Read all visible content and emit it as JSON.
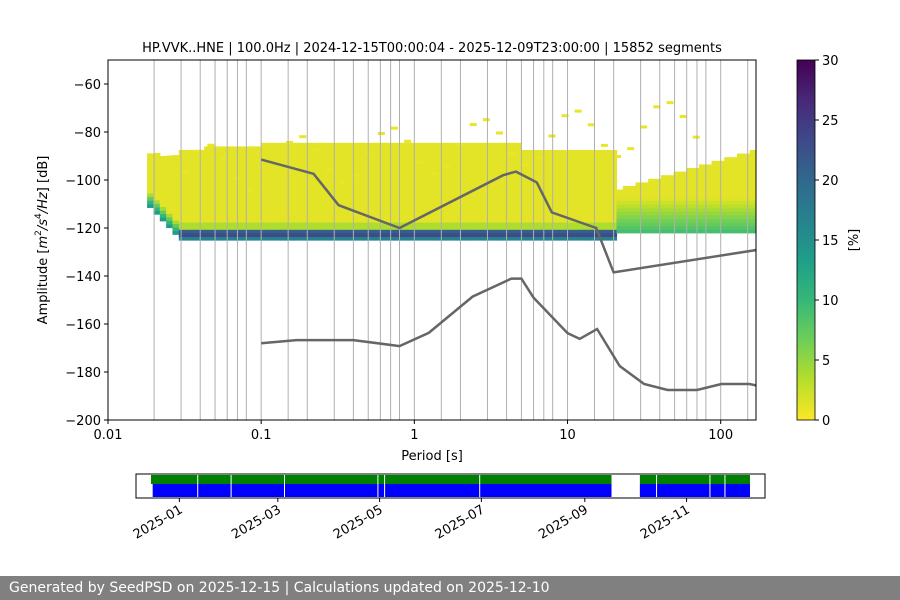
{
  "footer": "Generated by SeedPSD on 2025-12-15 | Calculations updated on 2025-12-10",
  "chart_data": [
    {
      "type": "heatmap",
      "title": "HP.VVK..HNE | 100.0Hz | 2024-12-15T00:00:04 - 2025-12-09T23:00:00 | 15852 segments",
      "xlabel": "Period [s]",
      "ylabel_parts": [
        "Amplitude [",
        "m",
        "2",
        "/",
        "s",
        "4",
        "/",
        "Hz",
        "] [dB]"
      ],
      "xscale": "log",
      "xlim": [
        0.01,
        170
      ],
      "ylim": [
        -200,
        -50
      ],
      "x_ticks": [
        0.01,
        0.1,
        1,
        10,
        100
      ],
      "x_tick_labels": [
        "0.01",
        "0.1",
        "1",
        "10",
        "100"
      ],
      "y_ticks": [
        -200,
        -180,
        -160,
        -140,
        -120,
        -100,
        -80,
        -60
      ],
      "grid": "vertical lines at period bins",
      "grid_periods": [
        0.02,
        0.03,
        0.04,
        0.05,
        0.06,
        0.07,
        0.08,
        0.1,
        0.15,
        0.2,
        0.3,
        0.4,
        0.5,
        0.6,
        0.7,
        0.8,
        1,
        1.5,
        2,
        3,
        4,
        5,
        6,
        7,
        8,
        10,
        15,
        20,
        30,
        40,
        50,
        60,
        70,
        80,
        100,
        150
      ],
      "colorbar": {
        "label": "[%]",
        "range": [
          0,
          30
        ],
        "ticks": [
          0,
          5,
          10,
          15,
          20,
          25,
          30
        ],
        "colormap": "viridis_r",
        "colors": [
          "#fde725",
          "#b5de2b",
          "#6ece58",
          "#35b779",
          "#1f9e89",
          "#26828e",
          "#31688e",
          "#3e4989",
          "#482878",
          "#440154"
        ]
      },
      "nhnm": {
        "name": "",
        "color": "#666666",
        "x": [
          0.1,
          0.22,
          0.32,
          0.8,
          3.8,
          4.6,
          6.3,
          7.9,
          15.4,
          20,
          354.8
        ],
        "y": [
          -91.5,
          -97.4,
          -110.5,
          -120,
          -98,
          -96.5,
          -101,
          -113.5,
          -120,
          -138.5,
          -126
        ]
      },
      "nlnm": {
        "name": "",
        "color": "#666666",
        "x": [
          0.1,
          0.17,
          0.4,
          0.8,
          1.24,
          2.4,
          4.3,
          5.0,
          6.0,
          10,
          12,
          15.6,
          21.9,
          31.6,
          45,
          70,
          101,
          154,
          170
        ],
        "y": [
          -168,
          -166.7,
          -166.7,
          -169.2,
          -163.7,
          -148.6,
          -141.1,
          -141.1,
          -149,
          -163.8,
          -166.2,
          -162.1,
          -177.5,
          -185,
          -187.5,
          -187.5,
          -185,
          -185,
          -185.6
        ]
      },
      "density_regions": {
        "main_band": {
          "period_range": [
            0.018,
            170
          ],
          "db_range": [
            -125,
            -90
          ],
          "description_percent_range": [
            0,
            30
          ]
        },
        "noise_floor_ridge": {
          "period_range": [
            0.03,
            20
          ],
          "db": -123
        }
      }
    },
    {
      "type": "timeline",
      "x_tick_labels": [
        "2025-01",
        "2025-03",
        "2025-05",
        "2025-07",
        "2025-09",
        "2025-11"
      ],
      "x_ticks": [
        "2025-01-01",
        "2025-03-01",
        "2025-05-01",
        "2025-07-01",
        "2025-09-01",
        "2025-11-01"
      ],
      "xlim": [
        "2024-12-06",
        "2025-12-18"
      ],
      "green_colour": "#008000",
      "blue_colour": "#0000ff",
      "green_spans": [
        [
          "2024-12-15",
          "2025-09-17"
        ],
        [
          "2025-10-04",
          "2025-12-09"
        ]
      ],
      "blue_spans": [
        [
          "2024-12-16",
          "2025-09-17"
        ],
        [
          "2025-10-04",
          "2025-12-09"
        ]
      ],
      "gap_lines": [
        "2025-01-12",
        "2025-02-01",
        "2025-03-05",
        "2025-04-30",
        "2025-05-04",
        "2025-06-30",
        "2025-09-19",
        "2025-10-14",
        "2025-11-15",
        "2025-11-24"
      ]
    }
  ]
}
